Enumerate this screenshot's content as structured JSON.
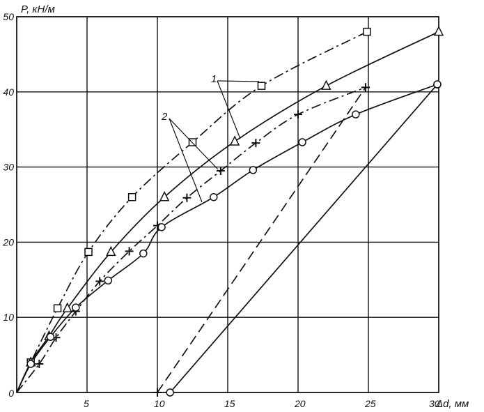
{
  "chart_data": {
    "type": "line",
    "xlabel": "Δd, мм",
    "ylabel": "P, кН/м",
    "xlim": [
      0,
      30
    ],
    "ylim": [
      0,
      50
    ],
    "x_ticks": [
      "0",
      "5",
      "10",
      "15",
      "20",
      "25",
      "30"
    ],
    "y_ticks": [
      "0",
      "10",
      "20",
      "30",
      "40",
      "50"
    ],
    "grid": true,
    "annotations": [
      "1",
      "2"
    ],
    "series": [
      {
        "marker": "square",
        "dash": "dash-dot",
        "color": "#111111",
        "points": [
          [
            0,
            0
          ],
          [
            1.0,
            4.0
          ],
          [
            2.9,
            11.2
          ],
          [
            5.1,
            18.7
          ],
          [
            8.2,
            26.0
          ],
          [
            12.5,
            33.3
          ],
          [
            17.4,
            40.8
          ],
          [
            24.9,
            48.0
          ]
        ]
      },
      {
        "marker": "triangle",
        "dash": "solid",
        "color": "#111111",
        "points": [
          [
            0,
            0
          ],
          [
            1.0,
            4.0
          ],
          [
            2.3,
            7.5
          ],
          [
            3.6,
            11.2
          ],
          [
            6.7,
            18.7
          ],
          [
            10.5,
            26.0
          ],
          [
            15.5,
            33.4
          ],
          [
            22.0,
            40.8
          ],
          [
            30.0,
            48.0
          ]
        ]
      },
      {
        "marker": "plus",
        "dash": "dash-dot",
        "color": "#111111",
        "points": [
          [
            0,
            0
          ],
          [
            1.6,
            3.8
          ],
          [
            2.8,
            7.3
          ],
          [
            4.2,
            10.8
          ],
          [
            5.9,
            14.8
          ],
          [
            8.0,
            18.8
          ],
          [
            10.0,
            22.2
          ],
          [
            12.1,
            25.9
          ],
          [
            14.5,
            29.5
          ],
          [
            17.0,
            33.2
          ],
          [
            20.0,
            37.0
          ],
          [
            24.8,
            40.6
          ]
        ]
      },
      {
        "marker": "circle",
        "dash": "solid",
        "color": "#111111",
        "points": [
          [
            0,
            0
          ],
          [
            1.0,
            3.8
          ],
          [
            2.4,
            7.4
          ],
          [
            4.2,
            11.3
          ],
          [
            6.5,
            14.9
          ],
          [
            9.0,
            18.5
          ],
          [
            10.3,
            22.0
          ],
          [
            14.0,
            26.0
          ],
          [
            16.8,
            29.6
          ],
          [
            20.3,
            33.3
          ],
          [
            24.1,
            37.0
          ],
          [
            29.9,
            41.0
          ]
        ]
      },
      {
        "marker": "plus",
        "dash": "dashed",
        "color": "#111111",
        "points": [
          [
            10.0,
            0
          ],
          [
            24.8,
            40.6
          ]
        ]
      },
      {
        "marker": "circle",
        "dash": "solid",
        "color": "#111111",
        "points": [
          [
            10.9,
            0
          ],
          [
            29.9,
            41.0
          ]
        ]
      }
    ]
  }
}
